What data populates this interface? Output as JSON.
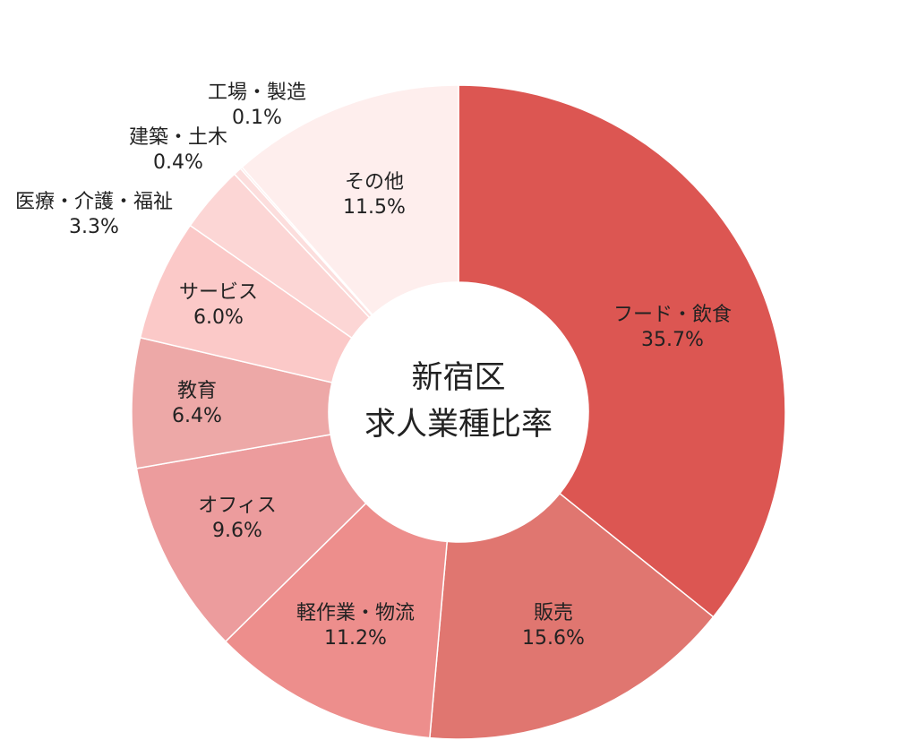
{
  "chart_data": {
    "type": "pie",
    "donut": true,
    "center_title": [
      "新宿区",
      "求人業種比率"
    ],
    "slices": [
      {
        "label": "フード・飲食",
        "value": 35.7,
        "value_text": "35.7%",
        "color": "#dc5652"
      },
      {
        "label": "販売",
        "value": 15.6,
        "value_text": "15.6%",
        "color": "#e07670"
      },
      {
        "label": "軽作業・物流",
        "value": 11.2,
        "value_text": "11.2%",
        "color": "#ed8e8c"
      },
      {
        "label": "オフィス",
        "value": 9.6,
        "value_text": "9.6%",
        "color": "#ec9c9d"
      },
      {
        "label": "教育",
        "value": 6.4,
        "value_text": "6.4%",
        "color": "#eda8a7"
      },
      {
        "label": "サービス",
        "value": 6.0,
        "value_text": "6.0%",
        "color": "#fbc9c8"
      },
      {
        "label": "医療・介護・福祉",
        "value": 3.3,
        "value_text": "3.3%",
        "color": "#fcd6d5"
      },
      {
        "label": "建築・土木",
        "value": 0.4,
        "value_text": "0.4%",
        "color": "#fcdedd"
      },
      {
        "label": "工場・製造",
        "value": 0.1,
        "value_text": "0.1%",
        "color": "#fde6e5"
      },
      {
        "label": "その他",
        "value": 11.5,
        "value_text": "11.5%",
        "color": "#feeeed"
      }
    ]
  }
}
